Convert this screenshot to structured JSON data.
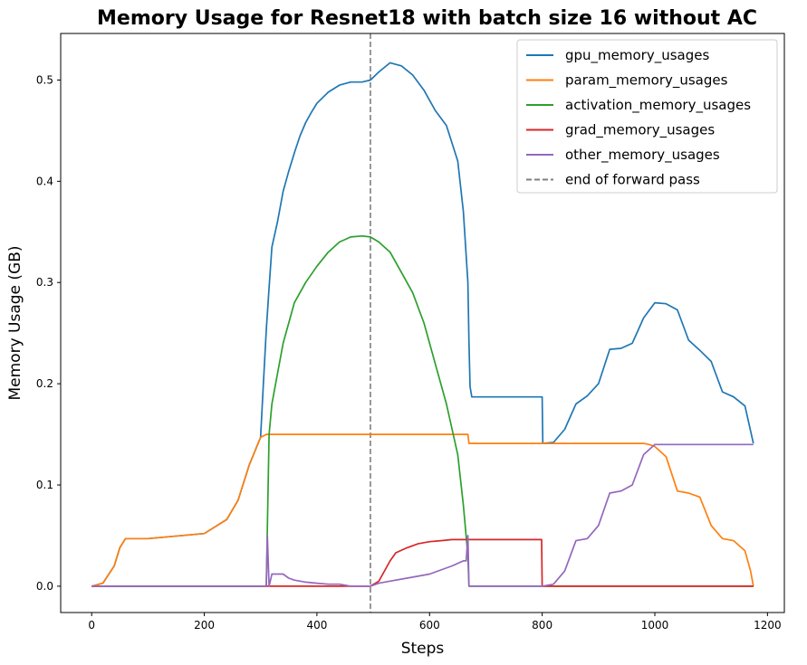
{
  "chart_data": {
    "type": "line",
    "title": "Memory Usage for Resnet18 with batch size 16 without AC",
    "xlabel": "Steps",
    "ylabel": "Memory Usage (GB)",
    "xlim": [
      -55,
      1230
    ],
    "ylim": [
      -0.026,
      0.546
    ],
    "xticks": [
      0,
      200,
      400,
      600,
      800,
      1000,
      1200
    ],
    "yticks": [
      0.0,
      0.1,
      0.2,
      0.3,
      0.4,
      0.5
    ],
    "xtick_labels": [
      "0",
      "200",
      "400",
      "600",
      "800",
      "1000",
      "1200"
    ],
    "ytick_labels": [
      "0.0",
      "0.1",
      "0.2",
      "0.3",
      "0.4",
      "0.5"
    ],
    "grid": false,
    "legend_position": "top-right",
    "vline": {
      "x": 495,
      "label": "end of forward pass",
      "color": "#7f7f7f",
      "style": "dashed"
    },
    "series": [
      {
        "name": "gpu_memory_usages",
        "color": "#1f77b4",
        "x": [
          0,
          20,
          40,
          50,
          60,
          100,
          200,
          240,
          260,
          280,
          300,
          305,
          310,
          315,
          320,
          330,
          340,
          350,
          360,
          370,
          380,
          390,
          400,
          420,
          440,
          460,
          480,
          495,
          510,
          530,
          550,
          570,
          590,
          610,
          630,
          650,
          660,
          668,
          670,
          672,
          675,
          690,
          720,
          760,
          800,
          801,
          820,
          840,
          860,
          880,
          900,
          920,
          940,
          960,
          980,
          1000,
          1020,
          1040,
          1060,
          1080,
          1100,
          1120,
          1140,
          1160,
          1175
        ],
        "y": [
          0.0,
          0.003,
          0.02,
          0.038,
          0.047,
          0.047,
          0.052,
          0.066,
          0.085,
          0.12,
          0.147,
          0.2,
          0.253,
          0.295,
          0.335,
          0.36,
          0.39,
          0.41,
          0.428,
          0.445,
          0.458,
          0.468,
          0.477,
          0.488,
          0.495,
          0.498,
          0.498,
          0.5,
          0.508,
          0.517,
          0.514,
          0.505,
          0.49,
          0.47,
          0.455,
          0.42,
          0.37,
          0.3,
          0.24,
          0.197,
          0.187,
          0.187,
          0.187,
          0.187,
          0.187,
          0.141,
          0.142,
          0.155,
          0.18,
          0.188,
          0.2,
          0.234,
          0.235,
          0.24,
          0.265,
          0.28,
          0.279,
          0.273,
          0.243,
          0.233,
          0.222,
          0.192,
          0.187,
          0.178,
          0.141
        ]
      },
      {
        "name": "param_memory_usages",
        "color": "#ff7f0e",
        "x": [
          0,
          20,
          40,
          50,
          60,
          100,
          200,
          240,
          260,
          280,
          300,
          310,
          315,
          320,
          400,
          500,
          600,
          668,
          670,
          700,
          800,
          900,
          980,
          990,
          1000,
          1020,
          1040,
          1060,
          1080,
          1100,
          1120,
          1140,
          1160,
          1170,
          1175
        ],
        "y": [
          0.0,
          0.003,
          0.02,
          0.038,
          0.047,
          0.047,
          0.052,
          0.066,
          0.085,
          0.12,
          0.147,
          0.15,
          0.15,
          0.15,
          0.15,
          0.15,
          0.15,
          0.15,
          0.141,
          0.141,
          0.141,
          0.141,
          0.141,
          0.14,
          0.138,
          0.128,
          0.094,
          0.092,
          0.088,
          0.06,
          0.047,
          0.045,
          0.035,
          0.015,
          0.0
        ]
      },
      {
        "name": "activation_memory_usages",
        "color": "#2ca02c",
        "x": [
          0,
          100,
          200,
          300,
          310,
          315,
          320,
          330,
          340,
          350,
          360,
          380,
          400,
          420,
          440,
          460,
          480,
          495,
          510,
          530,
          550,
          570,
          590,
          610,
          630,
          650,
          660,
          668,
          670,
          800,
          1000,
          1175
        ],
        "y": [
          0.0,
          0.0,
          0.0,
          0.0,
          0.0,
          0.15,
          0.18,
          0.21,
          0.24,
          0.26,
          0.28,
          0.3,
          0.316,
          0.33,
          0.34,
          0.345,
          0.346,
          0.345,
          0.34,
          0.33,
          0.31,
          0.29,
          0.26,
          0.22,
          0.18,
          0.13,
          0.08,
          0.03,
          0.0,
          0.0,
          0.0,
          0.0
        ]
      },
      {
        "name": "grad_memory_usages",
        "color": "#d62728",
        "x": [
          0,
          400,
          495,
          510,
          520,
          530,
          540,
          560,
          580,
          600,
          620,
          640,
          660,
          670,
          700,
          799,
          800,
          1000,
          1175
        ],
        "y": [
          0.0,
          0.0,
          0.0,
          0.005,
          0.015,
          0.025,
          0.033,
          0.038,
          0.042,
          0.044,
          0.045,
          0.046,
          0.046,
          0.046,
          0.046,
          0.046,
          0.0,
          0.0,
          0.0
        ]
      },
      {
        "name": "other_memory_usages",
        "color": "#9467bd",
        "x": [
          0,
          300,
          310,
          312,
          315,
          320,
          330,
          340,
          350,
          360,
          380,
          400,
          420,
          440,
          460,
          480,
          495,
          510,
          530,
          560,
          600,
          640,
          660,
          665,
          668,
          670,
          700,
          800,
          820,
          840,
          860,
          880,
          900,
          920,
          940,
          960,
          980,
          1000,
          1175
        ],
        "y": [
          0.0,
          0.0,
          0.0,
          0.05,
          0.0,
          0.012,
          0.012,
          0.012,
          0.008,
          0.006,
          0.004,
          0.003,
          0.002,
          0.002,
          0.0,
          0.0,
          0.0,
          0.003,
          0.005,
          0.008,
          0.012,
          0.02,
          0.025,
          0.025,
          0.05,
          0.0,
          0.0,
          0.0,
          0.002,
          0.015,
          0.045,
          0.047,
          0.06,
          0.092,
          0.094,
          0.1,
          0.13,
          0.14,
          0.14
        ]
      }
    ]
  }
}
